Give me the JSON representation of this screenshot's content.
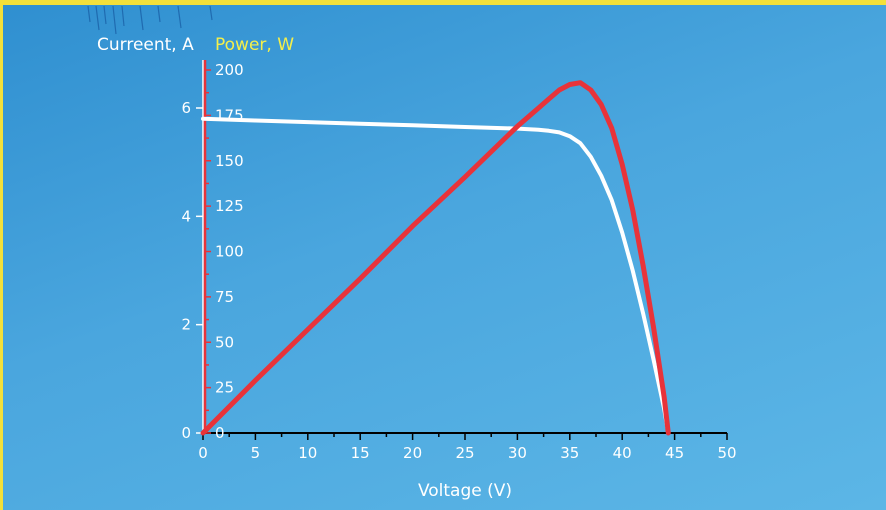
{
  "chart_data": {
    "type": "line",
    "xlabel": "Voltage (V)",
    "ylabel_left": "Curreent, A",
    "ylabel_right": "Power, W",
    "xlim": [
      0,
      50
    ],
    "ylim_current": [
      0,
      7
    ],
    "ylim_power": [
      0,
      200
    ],
    "x_ticks": [
      0,
      5,
      10,
      15,
      20,
      25,
      30,
      35,
      40,
      45,
      50
    ],
    "current_ticks": [
      0,
      2,
      4,
      6
    ],
    "power_ticks": [
      0,
      25,
      50,
      75,
      100,
      125,
      150,
      175,
      200
    ],
    "grid": false,
    "series": [
      {
        "axis": "current",
        "color": "#ffffff",
        "x": [
          0,
          5,
          10,
          15,
          20,
          25,
          30,
          32,
          33,
          34,
          35,
          36,
          37,
          38,
          39,
          40,
          41,
          42,
          43,
          44,
          44.4
        ],
        "values": [
          5.8,
          5.77,
          5.74,
          5.71,
          5.68,
          5.65,
          5.62,
          5.6,
          5.58,
          5.55,
          5.48,
          5.35,
          5.1,
          4.75,
          4.3,
          3.7,
          3.0,
          2.2,
          1.35,
          0.45,
          0.0
        ]
      },
      {
        "axis": "power",
        "color": "#e8333a",
        "x": [
          0,
          5,
          10,
          15,
          20,
          25,
          30,
          32,
          33,
          34,
          35,
          36,
          37,
          38,
          39,
          40,
          41,
          42,
          43,
          44,
          44.4
        ],
        "values": [
          0,
          29,
          57,
          85,
          114,
          141,
          169,
          179,
          184,
          189,
          192,
          193,
          189,
          181,
          168,
          148,
          123,
          92,
          58,
          20,
          0
        ]
      }
    ]
  },
  "colors": {
    "frame": "#f3e03a",
    "power_axis": "#e8333a",
    "power_label": "#f5ef4a"
  }
}
